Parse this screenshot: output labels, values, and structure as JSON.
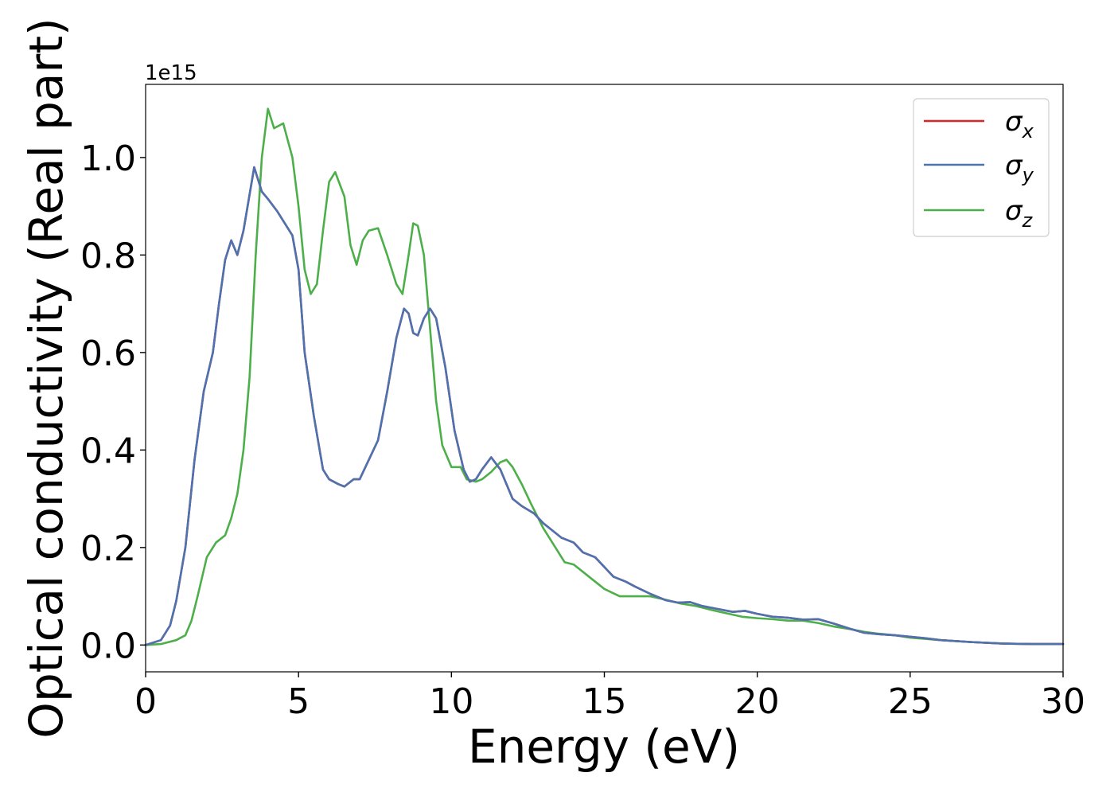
{
  "chart_data": {
    "type": "line",
    "title": "",
    "xlabel": "Energy (eV)",
    "ylabel": "Optical conductivity (Real part)",
    "y_offset_label": "1e15",
    "xlim": [
      0,
      30
    ],
    "ylim": [
      -0.055,
      1.15
    ],
    "xticks": [
      0,
      5,
      10,
      15,
      20,
      25,
      30
    ],
    "xtick_labels": [
      "0",
      "5",
      "10",
      "15",
      "20",
      "25",
      "30"
    ],
    "yticks": [
      0.0,
      0.2,
      0.4,
      0.6,
      0.8,
      1.0
    ],
    "ytick_labels": [
      "0.0",
      "0.2",
      "0.4",
      "0.6",
      "0.8",
      "1.0"
    ],
    "grid": false,
    "legend_position": "top-right",
    "series": [
      {
        "name": "σx",
        "label_base": "σ",
        "label_sub": "x",
        "color": "#d62728",
        "x": [
          0,
          0.5,
          0.8,
          1.0,
          1.3,
          1.6,
          1.9,
          2.2,
          2.4,
          2.6,
          2.8,
          3.0,
          3.2,
          3.55,
          3.8,
          4.0,
          4.3,
          4.6,
          4.8,
          5.0,
          5.2,
          5.5,
          5.8,
          6.0,
          6.3,
          6.5,
          6.8,
          7.0,
          7.3,
          7.6,
          7.9,
          8.2,
          8.45,
          8.6,
          8.75,
          8.9,
          9.1,
          9.3,
          9.5,
          9.8,
          10.1,
          10.4,
          10.6,
          10.8,
          11.0,
          11.3,
          11.6,
          12.0,
          12.3,
          12.7,
          13.0,
          13.3,
          13.6,
          14.0,
          14.3,
          14.7,
          15.0,
          15.3,
          15.7,
          16.0,
          16.5,
          17.0,
          17.4,
          17.8,
          18.2,
          18.7,
          19.2,
          19.6,
          20.0,
          20.5,
          21.0,
          21.5,
          22.0,
          22.5,
          23.0,
          23.5,
          24.0,
          24.5,
          25.0,
          25.5,
          26.0,
          27.0,
          28.0,
          29.0,
          30.0
        ],
        "y": [
          0.0,
          0.01,
          0.04,
          0.09,
          0.2,
          0.38,
          0.52,
          0.6,
          0.7,
          0.79,
          0.83,
          0.8,
          0.85,
          0.98,
          0.93,
          0.915,
          0.89,
          0.86,
          0.84,
          0.77,
          0.6,
          0.47,
          0.36,
          0.34,
          0.33,
          0.325,
          0.34,
          0.34,
          0.38,
          0.42,
          0.52,
          0.63,
          0.69,
          0.68,
          0.64,
          0.635,
          0.67,
          0.69,
          0.67,
          0.57,
          0.44,
          0.36,
          0.335,
          0.34,
          0.36,
          0.385,
          0.36,
          0.3,
          0.285,
          0.27,
          0.25,
          0.235,
          0.22,
          0.21,
          0.19,
          0.18,
          0.16,
          0.14,
          0.13,
          0.12,
          0.105,
          0.092,
          0.087,
          0.088,
          0.08,
          0.074,
          0.068,
          0.07,
          0.064,
          0.058,
          0.056,
          0.052,
          0.053,
          0.044,
          0.034,
          0.025,
          0.022,
          0.02,
          0.017,
          0.014,
          0.01,
          0.006,
          0.003,
          0.002,
          0.002
        ]
      },
      {
        "name": "σy",
        "label_base": "σ",
        "label_sub": "y",
        "color": "#4c72b0",
        "x": [
          0,
          0.5,
          0.8,
          1.0,
          1.3,
          1.6,
          1.9,
          2.2,
          2.4,
          2.6,
          2.8,
          3.0,
          3.2,
          3.55,
          3.8,
          4.0,
          4.3,
          4.6,
          4.8,
          5.0,
          5.2,
          5.5,
          5.8,
          6.0,
          6.3,
          6.5,
          6.8,
          7.0,
          7.3,
          7.6,
          7.9,
          8.2,
          8.45,
          8.6,
          8.75,
          8.9,
          9.1,
          9.3,
          9.5,
          9.8,
          10.1,
          10.4,
          10.6,
          10.8,
          11.0,
          11.3,
          11.6,
          12.0,
          12.3,
          12.7,
          13.0,
          13.3,
          13.6,
          14.0,
          14.3,
          14.7,
          15.0,
          15.3,
          15.7,
          16.0,
          16.5,
          17.0,
          17.4,
          17.8,
          18.2,
          18.7,
          19.2,
          19.6,
          20.0,
          20.5,
          21.0,
          21.5,
          22.0,
          22.5,
          23.0,
          23.5,
          24.0,
          24.5,
          25.0,
          25.5,
          26.0,
          27.0,
          28.0,
          29.0,
          30.0
        ],
        "y": [
          0.0,
          0.01,
          0.04,
          0.09,
          0.2,
          0.38,
          0.52,
          0.6,
          0.7,
          0.79,
          0.83,
          0.8,
          0.85,
          0.98,
          0.93,
          0.915,
          0.89,
          0.86,
          0.84,
          0.77,
          0.6,
          0.47,
          0.36,
          0.34,
          0.33,
          0.325,
          0.34,
          0.34,
          0.38,
          0.42,
          0.52,
          0.63,
          0.69,
          0.68,
          0.64,
          0.635,
          0.67,
          0.69,
          0.67,
          0.57,
          0.44,
          0.36,
          0.335,
          0.34,
          0.36,
          0.385,
          0.36,
          0.3,
          0.285,
          0.27,
          0.25,
          0.235,
          0.22,
          0.21,
          0.19,
          0.18,
          0.16,
          0.14,
          0.13,
          0.12,
          0.105,
          0.092,
          0.087,
          0.088,
          0.08,
          0.074,
          0.068,
          0.07,
          0.064,
          0.058,
          0.056,
          0.052,
          0.053,
          0.044,
          0.034,
          0.025,
          0.022,
          0.02,
          0.017,
          0.014,
          0.01,
          0.006,
          0.003,
          0.002,
          0.002
        ]
      },
      {
        "name": "σz",
        "label_base": "σ",
        "label_sub": "z",
        "color": "#4daf4a",
        "x": [
          0,
          0.5,
          1.0,
          1.3,
          1.5,
          1.7,
          2.0,
          2.3,
          2.6,
          2.8,
          3.0,
          3.2,
          3.4,
          3.6,
          3.8,
          4.0,
          4.2,
          4.5,
          4.8,
          5.0,
          5.2,
          5.4,
          5.6,
          5.8,
          6.0,
          6.2,
          6.5,
          6.7,
          6.9,
          7.1,
          7.3,
          7.6,
          7.9,
          8.2,
          8.4,
          8.6,
          8.75,
          8.9,
          9.1,
          9.3,
          9.5,
          9.7,
          10.0,
          10.3,
          10.5,
          10.8,
          11.0,
          11.3,
          11.6,
          11.8,
          12.0,
          12.3,
          12.6,
          13.0,
          13.4,
          13.7,
          14.0,
          14.3,
          14.7,
          15.0,
          15.5,
          16.0,
          16.5,
          17.0,
          17.5,
          18.0,
          18.5,
          19.0,
          19.5,
          20.0,
          20.5,
          21.0,
          21.5,
          22.0,
          22.5,
          23.0,
          23.5,
          24.0,
          24.5,
          25.0,
          26.0,
          27.0,
          28.0,
          29.0,
          30.0
        ],
        "y": [
          0.0,
          0.002,
          0.01,
          0.02,
          0.05,
          0.1,
          0.18,
          0.21,
          0.225,
          0.26,
          0.31,
          0.4,
          0.55,
          0.8,
          1.0,
          1.1,
          1.06,
          1.07,
          1.0,
          0.9,
          0.77,
          0.72,
          0.74,
          0.85,
          0.95,
          0.97,
          0.92,
          0.82,
          0.78,
          0.83,
          0.85,
          0.855,
          0.8,
          0.74,
          0.72,
          0.8,
          0.865,
          0.86,
          0.8,
          0.65,
          0.5,
          0.41,
          0.365,
          0.365,
          0.34,
          0.335,
          0.34,
          0.355,
          0.375,
          0.38,
          0.365,
          0.33,
          0.29,
          0.24,
          0.2,
          0.17,
          0.165,
          0.15,
          0.13,
          0.115,
          0.1,
          0.1,
          0.1,
          0.093,
          0.085,
          0.08,
          0.072,
          0.065,
          0.058,
          0.055,
          0.053,
          0.05,
          0.05,
          0.045,
          0.038,
          0.033,
          0.027,
          0.023,
          0.02,
          0.015,
          0.01,
          0.006,
          0.003,
          0.002,
          0.002
        ]
      }
    ]
  }
}
